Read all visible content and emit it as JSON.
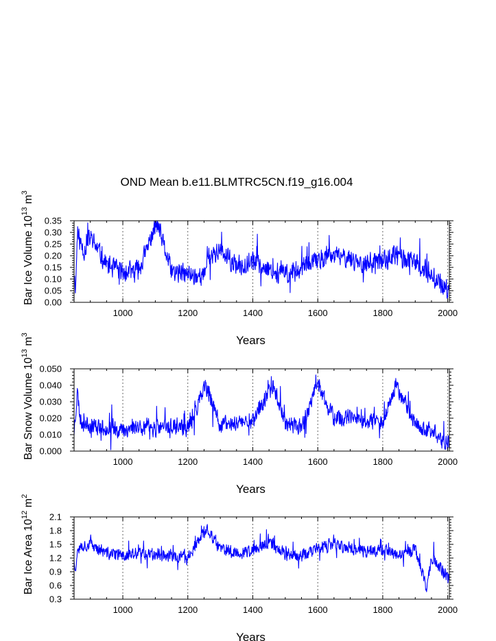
{
  "title": "OND Mean b.e11.BLMTRC5CN.f19_g16.004",
  "series_color": "#0000ff",
  "chart_data": [
    {
      "type": "line",
      "title": "OND Mean b.e11.BLMTRC5CN.f19_g16.004",
      "xlabel": "Years",
      "ylabel": "Bar Ice Volume 10",
      "ylabel_exp": "13",
      "ylabel_unit": " m",
      "ylabel_unit_exp": "3",
      "xlim": [
        850,
        2005
      ],
      "ylim": [
        0.0,
        0.35
      ],
      "xticks": [
        1000,
        1200,
        1400,
        1600,
        1800,
        2000
      ],
      "xtick_labels": [
        "1000",
        "1200",
        "1400",
        "1600",
        "1800",
        "2000"
      ],
      "yticks": [
        0.0,
        0.05,
        0.1,
        0.15,
        0.2,
        0.25,
        0.3,
        0.35
      ],
      "ytick_labels": [
        "0.00",
        "0.05",
        "0.10",
        "0.15",
        "0.20",
        "0.25",
        "0.30",
        "0.35"
      ],
      "grid": "dashed vertical at major x ticks",
      "series": [
        {
          "name": "Bar Ice Volume",
          "mean": 0.145,
          "noise": 0.05,
          "seed": 11,
          "x": [
            850,
            855,
            860,
            880,
            900,
            950,
            1000,
            1050,
            1105,
            1150,
            1200,
            1250,
            1260,
            1300,
            1350,
            1400,
            1450,
            1500,
            1550,
            1600,
            1650,
            1700,
            1750,
            1800,
            1840,
            1900,
            1950,
            2005
          ],
          "anchors": [
            0.12,
            0.07,
            0.29,
            0.22,
            0.28,
            0.16,
            0.13,
            0.14,
            0.34,
            0.13,
            0.12,
            0.11,
            0.2,
            0.22,
            0.15,
            0.18,
            0.14,
            0.12,
            0.15,
            0.18,
            0.2,
            0.19,
            0.16,
            0.18,
            0.2,
            0.17,
            0.12,
            0.04
          ]
        }
      ]
    },
    {
      "type": "line",
      "xlabel": "Years",
      "ylabel": "Bar Snow Volume 10",
      "ylabel_exp": "13",
      "ylabel_unit": " m",
      "ylabel_unit_exp": "3",
      "xlim": [
        850,
        2005
      ],
      "ylim": [
        0.0,
        0.05
      ],
      "xticks": [
        1000,
        1200,
        1400,
        1600,
        1800,
        2000
      ],
      "xtick_labels": [
        "1000",
        "1200",
        "1400",
        "1600",
        "1800",
        "2000"
      ],
      "yticks": [
        0.0,
        0.01,
        0.02,
        0.03,
        0.04,
        0.05
      ],
      "ytick_labels": [
        "0.000",
        "0.010",
        "0.020",
        "0.030",
        "0.040",
        "0.050"
      ],
      "grid": "dashed vertical at major x ticks",
      "series": [
        {
          "name": "Bar Snow Volume",
          "mean": 0.015,
          "noise": 0.006,
          "seed": 23,
          "x": [
            850,
            860,
            870,
            900,
            950,
            1000,
            1050,
            1100,
            1150,
            1200,
            1255,
            1300,
            1350,
            1400,
            1465,
            1500,
            1550,
            1600,
            1650,
            1700,
            1750,
            1800,
            1840,
            1900,
            1950,
            2005
          ],
          "anchors": [
            0.012,
            0.036,
            0.018,
            0.016,
            0.014,
            0.013,
            0.015,
            0.014,
            0.015,
            0.014,
            0.039,
            0.016,
            0.017,
            0.019,
            0.04,
            0.017,
            0.015,
            0.04,
            0.02,
            0.02,
            0.017,
            0.018,
            0.041,
            0.016,
            0.012,
            0.004
          ]
        }
      ]
    },
    {
      "type": "line",
      "xlabel": "Years",
      "ylabel": "Bar Ice Area 10",
      "ylabel_exp": "12",
      "ylabel_unit": " m",
      "ylabel_unit_exp": "2",
      "xlim": [
        850,
        2005
      ],
      "ylim": [
        0.3,
        2.1
      ],
      "xticks": [
        1000,
        1200,
        1400,
        1600,
        1800,
        2000
      ],
      "xtick_labels": [
        "1000",
        "1200",
        "1400",
        "1600",
        "1800",
        "2000"
      ],
      "yticks": [
        0.3,
        0.6,
        0.9,
        1.2,
        1.5,
        1.8,
        2.1
      ],
      "ytick_labels": [
        "0.3",
        "0.6",
        "0.9",
        "1.2",
        "1.5",
        "1.8",
        "2.1"
      ],
      "grid": "dashed vertical at major x ticks",
      "series": [
        {
          "name": "Bar Ice Area",
          "mean": 1.3,
          "noise": 0.16,
          "seed": 37,
          "x": [
            850,
            855,
            860,
            900,
            950,
            1000,
            1050,
            1100,
            1150,
            1200,
            1260,
            1300,
            1350,
            1400,
            1450,
            1500,
            1550,
            1600,
            1650,
            1700,
            1750,
            1800,
            1850,
            1900,
            1935,
            1950,
            2005
          ],
          "anchors": [
            1.2,
            0.85,
            1.45,
            1.5,
            1.3,
            1.25,
            1.3,
            1.3,
            1.25,
            1.2,
            1.85,
            1.4,
            1.3,
            1.35,
            1.55,
            1.3,
            1.25,
            1.4,
            1.5,
            1.4,
            1.35,
            1.4,
            1.25,
            1.4,
            0.55,
            1.2,
            0.75
          ]
        }
      ]
    }
  ]
}
